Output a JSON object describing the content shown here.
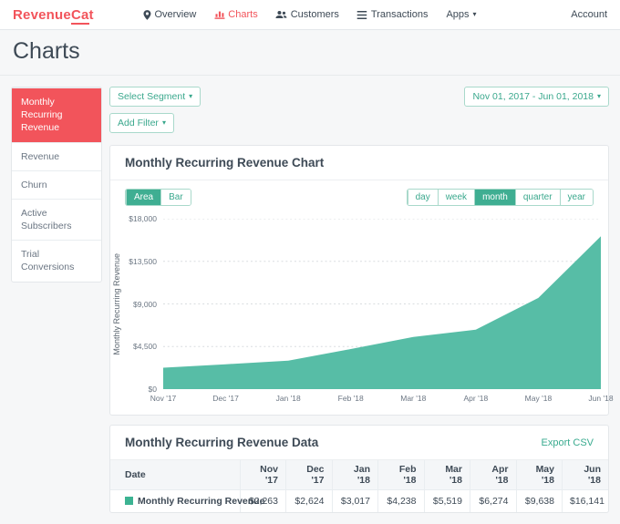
{
  "brand": {
    "part1": "Revenue",
    "part2": "Ca",
    "part3": "t",
    "color": "#f2545b"
  },
  "nav": {
    "items": [
      {
        "label": "Overview",
        "icon": "pin-icon",
        "active": false,
        "has_caret": false
      },
      {
        "label": "Charts",
        "icon": "bar-chart-icon",
        "active": true,
        "has_caret": false
      },
      {
        "label": "Customers",
        "icon": "people-icon",
        "active": false,
        "has_caret": false
      },
      {
        "label": "Transactions",
        "icon": "list-icon",
        "active": false,
        "has_caret": false
      },
      {
        "label": "Apps",
        "icon": "",
        "active": false,
        "has_caret": true
      }
    ],
    "account_label": "Account"
  },
  "page": {
    "title": "Charts"
  },
  "sidebar": {
    "items": [
      {
        "label": "Monthly Recurring Revenue",
        "active": true
      },
      {
        "label": "Revenue",
        "active": false
      },
      {
        "label": "Churn",
        "active": false
      },
      {
        "label": "Active Subscribers",
        "active": false
      },
      {
        "label": "Trial Conversions",
        "active": false
      }
    ]
  },
  "filters": {
    "segment_button": "Select Segment",
    "filter_button": "Add Filter",
    "date_range": "Nov 01, 2017 - Jun 01, 2018"
  },
  "chart_card": {
    "title": "Monthly Recurring Revenue Chart",
    "type_toggle": [
      {
        "label": "Area",
        "active": true
      },
      {
        "label": "Bar",
        "active": false
      }
    ],
    "period_toggle": [
      {
        "label": "day",
        "active": false
      },
      {
        "label": "week",
        "active": false
      },
      {
        "label": "month",
        "active": true
      },
      {
        "label": "quarter",
        "active": false
      },
      {
        "label": "year",
        "active": false
      }
    ]
  },
  "chart_data": {
    "type": "area",
    "title": "Monthly Recurring Revenue Chart",
    "x": [
      "Nov '17",
      "Dec '17",
      "Jan '18",
      "Feb '18",
      "Mar '18",
      "Apr '18",
      "May '18",
      "Jun '18"
    ],
    "series": [
      {
        "name": "Monthly Recurring Revenue",
        "values": [
          2263,
          2624,
          3017,
          4238,
          5519,
          6274,
          9638,
          16141
        ]
      }
    ],
    "ylabel": "Monthly Recurring Revenue",
    "ylim": [
      0,
      18000
    ],
    "yticks": [
      0,
      4500,
      9000,
      13500,
      18000
    ],
    "ytick_labels": [
      "$0",
      "$4,500",
      "$9,000",
      "$13,500",
      "$18,000"
    ],
    "grid": "dashed",
    "legend_position": "none",
    "fill_color": "#57bda6"
  },
  "table_card": {
    "title": "Monthly Recurring Revenue Data",
    "export_label": "Export CSV",
    "columns": [
      "Date",
      "Nov '17",
      "Dec '17",
      "Jan '18",
      "Feb '18",
      "Mar '18",
      "Apr '18",
      "May '18",
      "Jun '18"
    ],
    "rows": [
      {
        "label": "Monthly Recurring Revenue",
        "swatch_color": "#3cb392",
        "values": [
          "$2,263",
          "$2,624",
          "$3,017",
          "$4,238",
          "$5,519",
          "$6,274",
          "$9,638",
          "$16,141"
        ]
      }
    ]
  }
}
